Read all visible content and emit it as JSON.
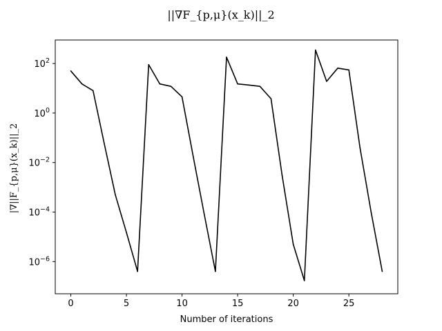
{
  "chart_data": {
    "type": "line",
    "title": "||∇F_{p,μ}(x_k)||_2",
    "xlabel": "Number of iterations",
    "ylabel": "|∇||F_{p,μ}(x_k)||_2",
    "x_scale": "linear",
    "y_scale": "log",
    "xlim": [
      -1.4,
      29.4
    ],
    "ylim_log10": [
      -7.3,
      2.95
    ],
    "x_ticks": [
      0,
      5,
      10,
      15,
      20,
      25
    ],
    "x_tick_labels": [
      "0",
      "5",
      "10",
      "15",
      "20",
      "25"
    ],
    "y_ticks": [
      2,
      0,
      -2,
      -4,
      -6
    ],
    "y_tick_labels": [
      {
        "base": "10",
        "exp": "2"
      },
      {
        "base": "10",
        "exp": "0"
      },
      {
        "base": "10",
        "exp": "−2"
      },
      {
        "base": "10",
        "exp": "−4"
      },
      {
        "base": "10",
        "exp": "−6"
      }
    ],
    "grid": false,
    "line_color": "#000000",
    "series": [
      {
        "x": [
          0,
          1,
          2,
          3,
          4,
          5,
          6,
          7,
          8,
          9,
          10,
          11,
          12,
          13,
          14,
          15,
          16,
          17,
          18,
          19,
          20,
          21,
          22,
          23,
          24,
          25,
          26,
          27,
          28
        ],
        "y": [
          50,
          15,
          8,
          0.06,
          0.0005,
          1.5e-05,
          4e-07,
          90,
          15,
          12,
          4.5,
          0.018,
          8e-05,
          4e-07,
          180,
          15,
          13.5,
          12,
          3.8,
          0.003,
          5e-06,
          1.7e-07,
          350,
          19,
          65,
          55,
          0.04,
          0.0001,
          4e-07
        ]
      }
    ]
  }
}
